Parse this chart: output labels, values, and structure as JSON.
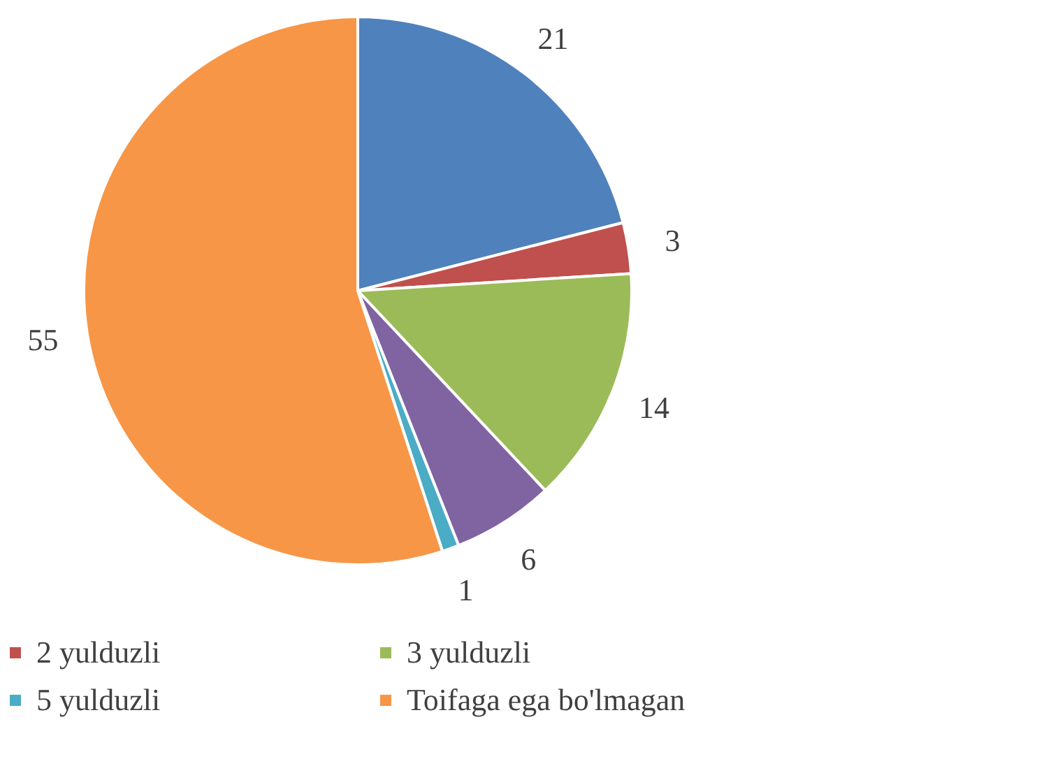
{
  "chart_data": {
    "type": "pie",
    "categories": [
      null,
      "2 yulduzli",
      "3 yulduzli",
      null,
      "5 yulduzli",
      "Toifaga ega bo'lmagan"
    ],
    "values": [
      21,
      3,
      14,
      6,
      1,
      55
    ],
    "colors": [
      "#4f81bd",
      "#c0504d",
      "#9bbb59",
      "#8064a2",
      "#4bacc6",
      "#f79646"
    ],
    "data_labels": true,
    "legend": "bottom"
  }
}
